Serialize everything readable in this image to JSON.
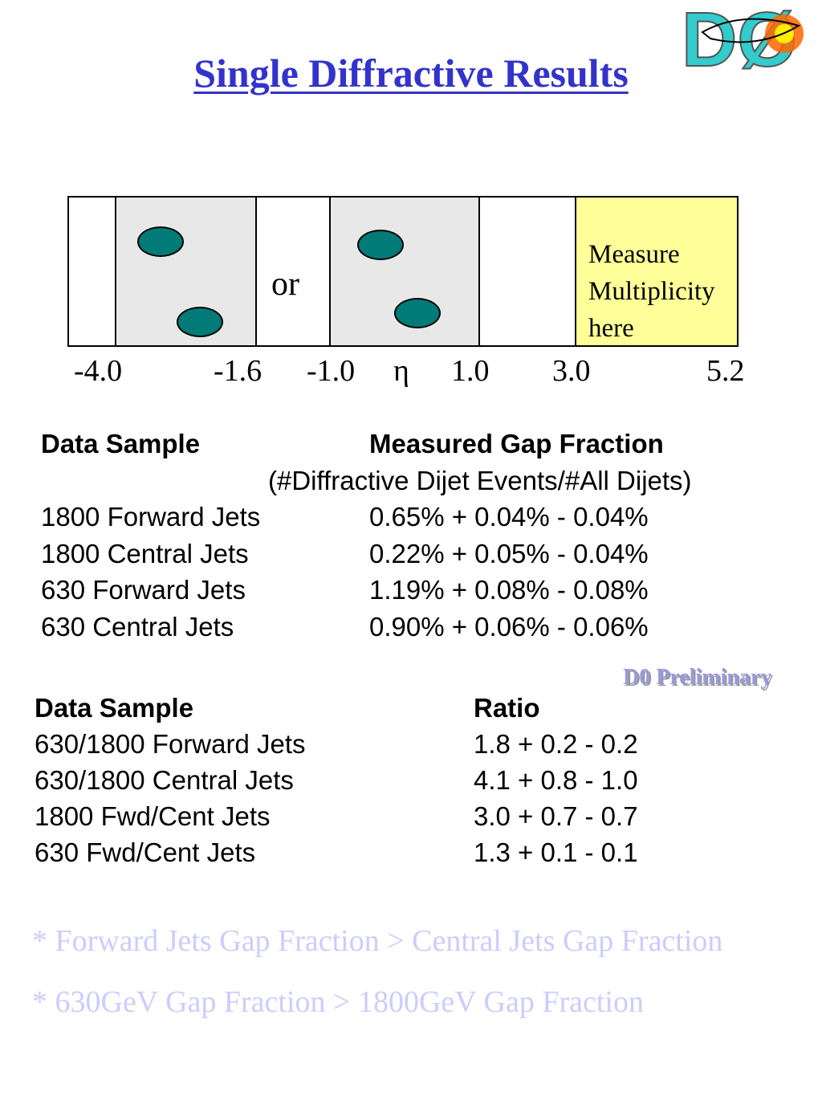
{
  "title": "Single Diffractive Results",
  "logo_text": "DØ",
  "diagram": {
    "or_label": "or",
    "measure_lines": [
      "Measure",
      "Multiplicity",
      "here"
    ],
    "eta_symbol": "η",
    "ticks": [
      "-4.0",
      "-1.6",
      "-1.0",
      "1.0",
      "3.0",
      "5.2"
    ]
  },
  "gap_table": {
    "header_sample": "Data Sample",
    "header_value": "Measured Gap Fraction",
    "subheader": "(#Diffractive Dijet Events/#All Dijets)",
    "rows": [
      {
        "sample": "1800 Forward Jets",
        "value": "0.65% + 0.04% - 0.04%"
      },
      {
        "sample": "1800 Central Jets",
        "value": "0.22% + 0.05% - 0.04%"
      },
      {
        "sample": "630 Forward Jets",
        "value": "1.19% + 0.08% - 0.08%"
      },
      {
        "sample": "630 Central Jets",
        "value": "0.90% + 0.06% - 0.06%"
      }
    ]
  },
  "preliminary": "D0 Preliminary",
  "ratio_table": {
    "header_sample": "Data Sample",
    "header_value": "Ratio",
    "rows": [
      {
        "sample": "630/1800 Forward Jets",
        "value": "1.8 + 0.2 - 0.2"
      },
      {
        "sample": "630/1800 Central Jets",
        "value": "4.1 + 0.8 - 1.0"
      },
      {
        "sample": "1800 Fwd/Cent Jets",
        "value": "3.0 + 0.7 - 0.7"
      },
      {
        "sample": "630 Fwd/Cent Jets",
        "value": "1.3 + 0.1 - 0.1"
      }
    ]
  },
  "bullets": [
    "* Forward Jets Gap Fraction > Central Jets Gap Fraction",
    "* 630GeV Gap Fraction > 1800GeV Gap Fraction"
  ],
  "colors": {
    "title": "#3333cc",
    "dot": "#007b78",
    "gap_region": "#e8e8e8",
    "measure_region": "#ffff99",
    "bullet_text": "#ccccff",
    "preliminary": "#9999dd"
  }
}
